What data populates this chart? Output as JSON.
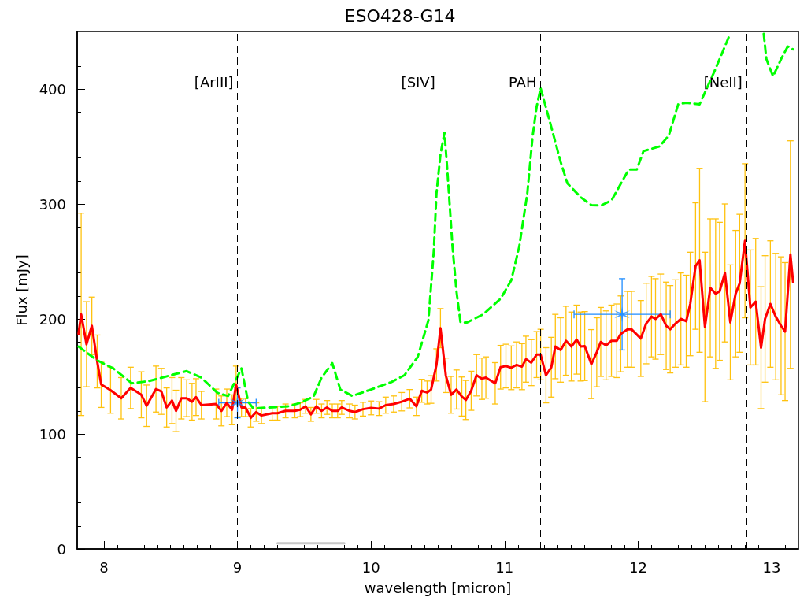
{
  "chart_data": {
    "type": "line",
    "title": "ESO428-G14",
    "xlabel": "wavelength [micron]",
    "ylabel": "Flux [mJy]",
    "xlim": [
      7.8,
      13.2
    ],
    "xticks": [
      8,
      9,
      10,
      11,
      12,
      13
    ],
    "ylim": [
      0,
      450
    ],
    "yticks": [
      0,
      100,
      200,
      300,
      400
    ],
    "grid": false,
    "series": [
      {
        "color": "#ff0000",
        "marker": "none",
        "line_style": "solid",
        "x": [
          7.81,
          7.83,
          7.87,
          7.91,
          7.95,
          7.98,
          8.05,
          8.13,
          8.2,
          8.28,
          8.32,
          8.39,
          8.43,
          8.47,
          8.51,
          8.54,
          8.58,
          8.62,
          8.66,
          8.69,
          8.73,
          8.84,
          8.88,
          8.92,
          8.96,
          8.99,
          9.03,
          9.06,
          9.1,
          9.14,
          9.18,
          9.26,
          9.3,
          9.36,
          9.43,
          9.47,
          9.51,
          9.55,
          9.59,
          9.63,
          9.67,
          9.71,
          9.75,
          9.78,
          9.84,
          9.88,
          9.94,
          10.0,
          10.06,
          10.11,
          10.17,
          10.23,
          10.29,
          10.34,
          10.38,
          10.42,
          10.45,
          10.49,
          10.52,
          10.56,
          10.6,
          10.64,
          10.68,
          10.71,
          10.75,
          10.79,
          10.83,
          10.86,
          10.93,
          10.97,
          11.01,
          11.05,
          11.09,
          11.13,
          11.16,
          11.2,
          11.24,
          11.27,
          11.31,
          11.35,
          11.38,
          11.42,
          11.46,
          11.5,
          11.54,
          11.57,
          11.6,
          11.65,
          11.69,
          11.72,
          11.76,
          11.8,
          11.84,
          11.87,
          11.92,
          11.95,
          12.02,
          12.06,
          12.1,
          12.13,
          12.17,
          12.21,
          12.24,
          12.28,
          12.32,
          12.36,
          12.39,
          12.43,
          12.46,
          12.5,
          12.54,
          12.58,
          12.61,
          12.65,
          12.69,
          12.73,
          12.76,
          12.8,
          12.84,
          12.88,
          12.92,
          12.95,
          12.99,
          13.03,
          13.07,
          13.1,
          13.14,
          13.16
        ],
        "values": [
          187,
          204,
          178,
          194,
          163,
          143,
          138,
          131,
          140,
          134,
          124.5,
          139,
          137,
          123,
          129,
          120,
          131,
          131,
          128,
          132,
          125,
          126,
          120,
          127,
          121,
          143,
          123,
          123,
          114,
          119,
          116,
          118,
          118,
          120,
          120,
          121,
          124,
          117,
          124,
          120,
          123,
          120,
          120,
          123,
          120,
          119,
          121.5,
          122.6,
          122,
          125,
          126,
          128,
          130.6,
          124,
          137.5,
          136,
          138.6,
          160,
          192,
          151,
          134,
          138.6,
          132.5,
          129.5,
          137.5,
          151,
          148,
          149,
          144,
          158,
          159,
          157.5,
          160,
          158.5,
          165,
          162,
          169,
          169,
          151,
          158,
          176,
          173,
          181,
          176,
          182,
          176,
          176.4,
          160.7,
          171,
          180,
          177,
          181,
          181,
          187,
          191,
          191,
          183,
          196,
          202,
          200,
          204,
          194,
          191,
          196,
          200,
          198,
          213,
          246,
          251,
          193,
          227,
          222,
          224,
          240,
          197,
          222,
          231,
          268,
          210,
          215,
          175,
          200,
          213,
          202,
          194,
          189,
          256,
          232
        ],
        "errors": [
          null,
          88,
          37,
          25,
          23,
          20,
          20,
          18,
          18,
          20,
          18,
          20,
          20,
          17,
          20,
          18,
          18,
          16,
          16,
          16,
          12,
          13,
          13,
          12,
          13,
          16,
          8,
          8,
          8,
          8,
          7,
          6,
          6,
          6,
          6,
          6,
          6,
          6,
          6,
          6,
          6,
          6,
          6,
          6,
          6,
          6,
          6,
          6,
          6,
          7,
          7,
          8,
          8,
          8,
          10,
          10,
          12,
          14,
          17,
          15,
          16,
          17,
          17,
          17,
          17,
          18,
          18,
          18,
          18,
          19,
          19,
          19,
          20,
          20,
          20,
          20,
          20,
          22,
          24,
          26,
          28,
          28,
          30,
          30,
          30,
          30,
          30,
          30,
          30,
          30,
          30,
          31,
          32,
          33,
          33,
          33,
          33,
          35,
          35,
          35,
          35,
          38,
          38,
          38,
          40,
          40,
          45,
          55,
          80,
          65,
          60,
          65,
          60,
          60,
          50,
          55,
          60,
          67,
          50,
          55,
          53,
          55,
          55,
          55,
          60,
          60,
          99,
          null
        ]
      },
      {
        "color": "#00ff00",
        "marker": "none",
        "line_style": "dashed",
        "x": [
          7.81,
          7.95,
          8.07,
          8.21,
          8.34,
          8.5,
          8.62,
          8.73,
          8.85,
          8.93,
          9.03,
          9.08,
          9.12,
          9.24,
          9.38,
          9.47,
          9.57,
          9.63,
          9.71,
          9.77,
          9.86,
          10.0,
          10.15,
          10.25,
          10.35,
          10.43,
          10.47,
          10.49,
          10.52,
          10.55,
          10.57,
          10.61,
          10.64,
          10.67,
          10.72,
          10.84,
          10.97,
          11.05,
          11.11,
          11.17,
          11.21,
          11.24,
          11.27,
          11.34,
          11.42,
          11.47,
          11.57,
          11.65,
          11.72,
          11.8,
          11.93,
          11.99,
          12.04,
          12.16,
          12.23,
          12.3,
          12.36,
          12.46,
          12.57,
          12.68,
          12.8,
          12.94,
          12.96,
          13.01,
          13.07,
          13.12,
          13.16
        ],
        "values": [
          176,
          164,
          157,
          144,
          146,
          151,
          154.6,
          149,
          135.7,
          133,
          157,
          128,
          122,
          123,
          124,
          127,
          132.5,
          149,
          161.5,
          138.6,
          133,
          138.6,
          145,
          151,
          167,
          199,
          259,
          309,
          343,
          362,
          332,
          263,
          224,
          197,
          197,
          204,
          217.6,
          233.6,
          263,
          309,
          359,
          384.6,
          400.6,
          371,
          336.5,
          318,
          305.8,
          299,
          298.6,
          303,
          330,
          330,
          346,
          350,
          359.7,
          386.7,
          388,
          386.7,
          415,
          445.5,
          null,
          448,
          426,
          411,
          426,
          437,
          434.5
        ]
      },
      {
        "type": "scatter",
        "color": "#1e8cff",
        "marker": "cross",
        "x": [
          9.0,
          11.88
        ],
        "values": [
          127,
          204
        ],
        "errors": [
          13,
          31
        ],
        "xerrors": [
          0.14,
          0.36
        ]
      },
      {
        "color": "#c8c8c8",
        "marker": "none",
        "line_style": "solid",
        "x": [
          9.3,
          9.8
        ],
        "values": [
          5,
          5
        ]
      }
    ],
    "ref_lines": [
      {
        "axis": "x",
        "value": 9.0,
        "label": "[ArIII]",
        "color": "#000000",
        "line_style": "dashed"
      },
      {
        "axis": "x",
        "value": 10.51,
        "label": "[SIV]",
        "color": "#000000",
        "line_style": "dashed"
      },
      {
        "axis": "x",
        "value": 11.27,
        "label": "PAH",
        "color": "#000000",
        "line_style": "dashed"
      },
      {
        "axis": "x",
        "value": 12.81,
        "label": "[NeII]",
        "color": "#000000",
        "line_style": "dashed"
      }
    ]
  }
}
